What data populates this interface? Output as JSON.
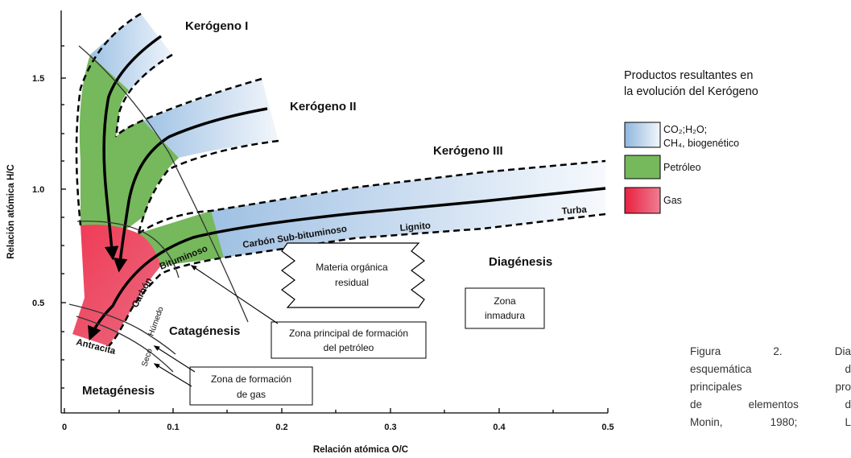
{
  "axes": {
    "x_title": "Relación atómica O/C",
    "y_title": "Relación atómica H/C",
    "x_ticks": [
      "0",
      "0.1",
      "0.2",
      "0.3",
      "0.4",
      "0.5"
    ],
    "y_ticks": [
      "0.5",
      "1.0",
      "1.5"
    ]
  },
  "kerogens": {
    "k1": "Kerógeno I",
    "k2": "Kerógeno II",
    "k3": "Kerógeno III"
  },
  "stages": {
    "diagenesis": "Diagénesis",
    "catagenesis": "Catagénesis",
    "metagenesis": "Metagénesis"
  },
  "coal_labels": {
    "turba": "Turba",
    "lignito": "Lignito",
    "sub_bituminoso": "Carbón Sub-bituminoso",
    "carbon": "Carbón",
    "bituminoso": "Bituminoso",
    "antracita": "Antracita",
    "humedo": "Húmedo",
    "seco": "Seco"
  },
  "boxes": {
    "materia_line1": "Materia orgánica",
    "materia_line2": "residual",
    "inmadura_line1": "Zona",
    "inmadura_line2": "inmadura",
    "petroleo_line1": "Zona principal de formación",
    "petroleo_line2": "del petróleo",
    "gas_line1": "Zona de formación",
    "gas_line2": "de gas"
  },
  "legend": {
    "title_line1": "Productos resultantes en",
    "title_line2": "la evolución del Kerógeno",
    "item1_line1": "CO₂;H₂O;",
    "item1_line2": "CH₄, biogenético",
    "item2": "Petróleo",
    "item3": "Gas"
  },
  "caption_lines": [
    "Figura 2. Dia",
    "esquemática d",
    "principales pro",
    "de elementos d",
    "Monin, 1980; L"
  ],
  "colors": {
    "biogenic_blue": "#a9c8e6",
    "oil_green": "#76b85c",
    "gas_red": "#e8213f"
  }
}
